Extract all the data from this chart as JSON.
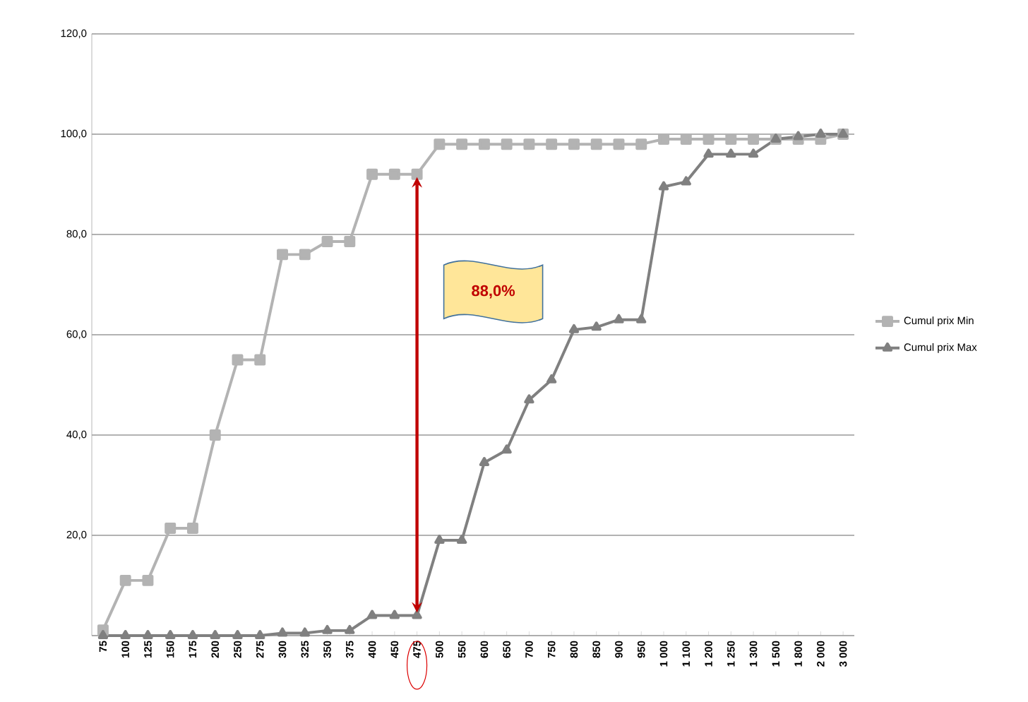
{
  "chart_data": {
    "type": "line",
    "categories": [
      "75",
      "100",
      "125",
      "150",
      "175",
      "200",
      "250",
      "275",
      "300",
      "325",
      "350",
      "375",
      "400",
      "450",
      "475",
      "500",
      "550",
      "600",
      "650",
      "700",
      "750",
      "800",
      "850",
      "900",
      "950",
      "1 000",
      "1 100",
      "1 200",
      "1 250",
      "1 300",
      "1 500",
      "1 800",
      "2 000",
      "3 000"
    ],
    "series": [
      {
        "name": "Cumul prix Min",
        "color": "#b3b3b3",
        "marker": "square",
        "values": [
          1.1,
          11,
          11,
          21.4,
          21.4,
          40,
          55,
          55,
          76,
          76,
          78.6,
          78.6,
          92,
          92,
          92,
          98,
          98,
          98,
          98,
          98,
          98,
          98,
          98,
          98,
          98,
          99,
          99,
          99,
          99,
          99,
          99,
          99,
          99,
          100
        ]
      },
      {
        "name": "Cumul prix Max",
        "color": "#808080",
        "marker": "triangle",
        "values": [
          0,
          0,
          0,
          0,
          0,
          0,
          0,
          0,
          0.5,
          0.5,
          1,
          1,
          4,
          4,
          4,
          19,
          19,
          34.5,
          37,
          47,
          51,
          61,
          61.5,
          63,
          63,
          89.5,
          90.5,
          96,
          96,
          96,
          99,
          99.5,
          100,
          100
        ]
      }
    ],
    "ylim": [
      0,
      120
    ],
    "yticks": [
      {
        "value": 0,
        "label": null
      },
      {
        "value": 20,
        "label": "20,0"
      },
      {
        "value": 40,
        "label": "40,0"
      },
      {
        "value": 60,
        "label": "60,0"
      },
      {
        "value": 80,
        "label": "80,0"
      },
      {
        "value": 100,
        "label": "100,0"
      },
      {
        "value": 120,
        "label": "120,0"
      }
    ],
    "grid": "y",
    "legend": "right",
    "line_style": "solid",
    "annotations": [
      "88,0%"
    ]
  }
}
